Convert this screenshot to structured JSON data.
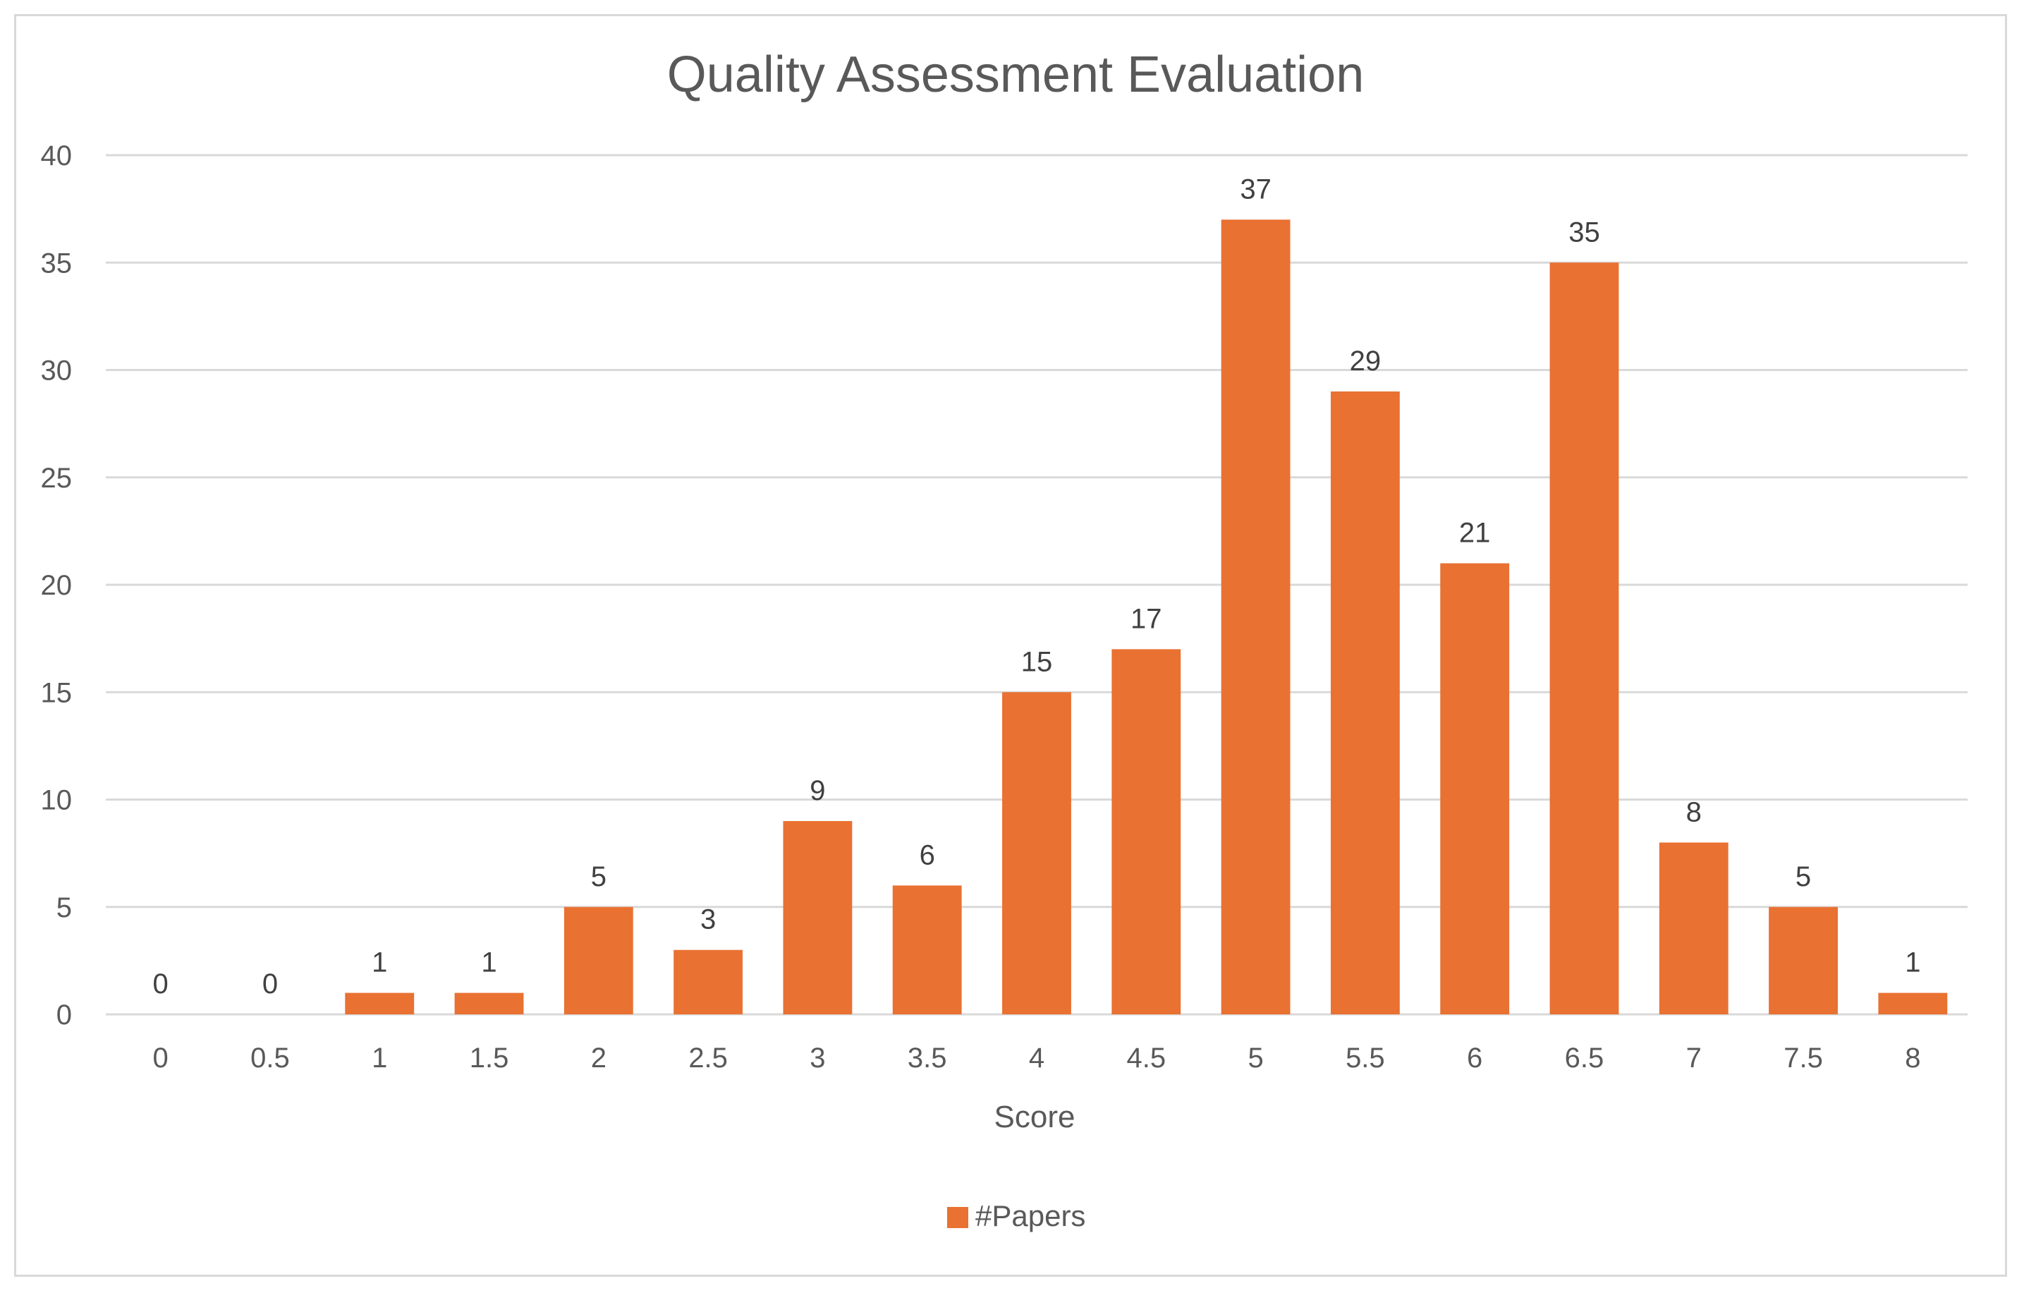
{
  "chart_data": {
    "type": "bar",
    "title": "Quality Assessment Evaluation",
    "xlabel": "Score",
    "ylabel": "",
    "categories": [
      "0",
      "0.5",
      "1",
      "1.5",
      "2",
      "2.5",
      "3",
      "3.5",
      "4",
      "4.5",
      "5",
      "5.5",
      "6",
      "6.5",
      "7",
      "7.5",
      "8"
    ],
    "series": [
      {
        "name": "#Papers",
        "values": [
          0,
          0,
          1,
          1,
          5,
          3,
          9,
          6,
          15,
          17,
          37,
          29,
          21,
          35,
          8,
          5,
          1
        ],
        "color": "#E97132"
      }
    ],
    "ylim": [
      0,
      40
    ],
    "yticks": [
      0,
      5,
      10,
      15,
      20,
      25,
      30,
      35,
      40
    ],
    "grid": true,
    "data_labels": true,
    "legend_position": "bottom"
  }
}
